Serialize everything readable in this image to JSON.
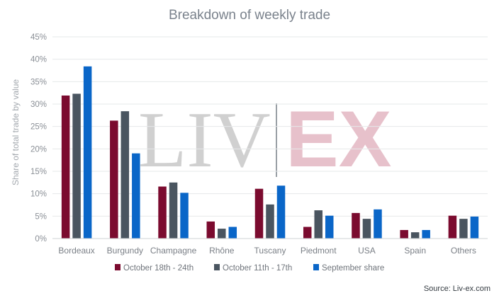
{
  "chart_data": {
    "type": "bar",
    "title": "Breakdown of weekly trade",
    "xlabel": "",
    "ylabel": "Share of total trade by value",
    "ylim": [
      0,
      45
    ],
    "ytick_step": 5,
    "ytick_suffix": "%",
    "grid": true,
    "legend_position": "bottom",
    "categories": [
      "Bordeaux",
      "Burgundy",
      "Champagne",
      "Rhône",
      "Tuscany",
      "Piedmont",
      "USA",
      "Spain",
      "Others"
    ],
    "series": [
      {
        "name": "October 18th - 24th",
        "color": "#7b0b2f",
        "values": [
          31.9,
          26.3,
          11.6,
          3.8,
          11.1,
          2.6,
          5.7,
          1.9,
          5.1
        ]
      },
      {
        "name": "October 11th - 17th",
        "color": "#4a5560",
        "values": [
          32.3,
          28.4,
          12.5,
          2.2,
          7.6,
          6.3,
          4.4,
          1.4,
          4.4
        ]
      },
      {
        "name": "September share",
        "color": "#0a66c8",
        "values": [
          38.4,
          19.0,
          10.2,
          2.6,
          11.8,
          5.1,
          6.5,
          1.9,
          4.9
        ]
      }
    ],
    "watermark": {
      "left": "LIV",
      "right": "EX"
    },
    "source": "Source: Liv-ex.com"
  }
}
